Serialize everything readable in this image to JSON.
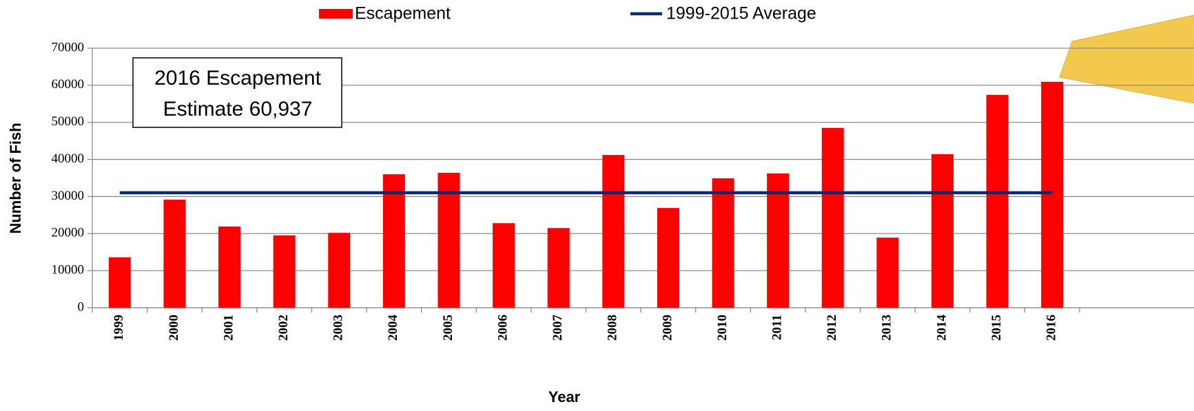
{
  "chart_data": {
    "type": "bar",
    "x_label": "Year",
    "y_label": "Number of Fish",
    "annotation": [
      "2016 Escapement",
      "Estimate 60,937"
    ],
    "categories": [
      "1999",
      "2000",
      "2001",
      "2002",
      "2003",
      "2004",
      "2005",
      "2006",
      "2007",
      "2008",
      "2009",
      "2010",
      "2011",
      "2012",
      "2013",
      "2014",
      "2015",
      "2016"
    ],
    "series": [
      {
        "name": "Escapement",
        "type": "bar",
        "color": "#ff0000",
        "values": [
          13600,
          29150,
          21900,
          19500,
          20200,
          36000,
          36400,
          22800,
          21500,
          41200,
          26900,
          34900,
          36200,
          48500,
          18900,
          41400,
          57400,
          60937
        ]
      },
      {
        "name": "1999-2015 Average",
        "type": "line",
        "color": "#0d2a6b",
        "values": [
          31000,
          31000,
          31000,
          31000,
          31000,
          31000,
          31000,
          31000,
          31000,
          31000,
          31000,
          31000,
          31000,
          31000,
          31000,
          31000,
          31000,
          31000
        ]
      }
    ],
    "ylim": [
      0,
      70000
    ],
    "yticks": [
      0,
      10000,
      20000,
      30000,
      40000,
      50000,
      60000,
      70000
    ],
    "grid": true
  }
}
